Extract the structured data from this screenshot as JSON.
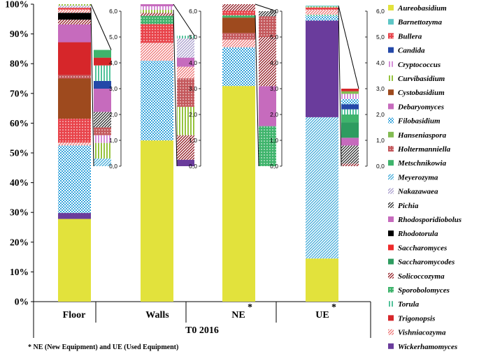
{
  "chart_data": {
    "type": "stacked-bar",
    "title": "",
    "xlabel": "T0 2016",
    "footnote": "* NE (New Equipment) and UE (Used Equipment)",
    "y_ticks": [
      "0%",
      "10%",
      "20%",
      "30%",
      "40%",
      "50%",
      "60%",
      "70%",
      "80%",
      "90%",
      "100%"
    ],
    "ylim": [
      0,
      100
    ],
    "inset_ticks": [
      "0,0",
      "1,0",
      "2,0",
      "3,0",
      "4,0",
      "5,0",
      "6,0"
    ],
    "inset_ylim": [
      0,
      6
    ],
    "species": [
      {
        "name": "Aureobasidium",
        "color": "#e2e23c",
        "pattern": "solid"
      },
      {
        "name": "Barnettozyma",
        "color": "#5ec6c6",
        "pattern": "solid"
      },
      {
        "name": "Bullera",
        "color": "#e8434a",
        "pattern": "dots"
      },
      {
        "name": "Candida",
        "color": "#2448a8",
        "pattern": "solid"
      },
      {
        "name": "Cryptococcus",
        "color": "#d58ed8",
        "pattern": "vlines"
      },
      {
        "name": "Curvibasidium",
        "color": "#96c33e",
        "pattern": "vlines"
      },
      {
        "name": "Cystobasidium",
        "color": "#9e4a1e",
        "pattern": "solid"
      },
      {
        "name": "Debaryomyces",
        "color": "#c66bbd",
        "pattern": "solid"
      },
      {
        "name": "Filobasidium",
        "color": "#35a4dc",
        "pattern": "check"
      },
      {
        "name": "Hanseniaspora",
        "color": "#82bb52",
        "pattern": "solid"
      },
      {
        "name": "Holtermanniella",
        "color": "#c4585c",
        "pattern": "dots"
      },
      {
        "name": "Metschnikowia",
        "color": "#3fb46c",
        "pattern": "solid"
      },
      {
        "name": "Meyerozyma",
        "color": "#3aa8d8",
        "pattern": "diag"
      },
      {
        "name": "Nakazawaea",
        "color": "#a69acc",
        "pattern": "diag"
      },
      {
        "name": "Pichia",
        "color": "#222222",
        "pattern": "diag"
      },
      {
        "name": "Rhodosporidiobolus",
        "color": "#c66bbd",
        "pattern": "solid"
      },
      {
        "name": "Rhodotorula",
        "color": "#000000",
        "pattern": "solid"
      },
      {
        "name": "Saccharomyces",
        "color": "#ee2a2a",
        "pattern": "solid"
      },
      {
        "name": "Saccharomycodes",
        "color": "#2e9c60",
        "pattern": "solid"
      },
      {
        "name": "Solicoccozyma",
        "color": "#8c0e16",
        "pattern": "diag"
      },
      {
        "name": "Sporobolomyces",
        "color": "#3fb46c",
        "pattern": "dots"
      },
      {
        "name": "Torula",
        "color": "#52c29a",
        "pattern": "vlines"
      },
      {
        "name": "Trigonopsis",
        "color": "#d6262a",
        "pattern": "solid"
      },
      {
        "name": "Vishniacozyma",
        "color": "#ee7070",
        "pattern": "diag"
      },
      {
        "name": "Wickerhamomyces",
        "color": "#6a3c9c",
        "pattern": "solid"
      }
    ],
    "groups": [
      {
        "name": "Floor",
        "main": [
          {
            "species": "Aureobasidium",
            "value": 27.8
          },
          {
            "species": "Wickerhamomyces",
            "value": 2.0
          },
          {
            "species": "Filobasidium",
            "value": 22.7
          },
          {
            "species": "Vishniacozyma",
            "value": 1.0
          },
          {
            "species": "Bullera",
            "value": 8.0
          },
          {
            "species": "Cystobasidium",
            "value": 13.5
          },
          {
            "species": "Holtermanniella",
            "value": 1.2
          },
          {
            "species": "Trigonopsis",
            "value": 11.0
          },
          {
            "species": "Debaryomyces",
            "value": 6.0
          },
          {
            "species": "Solicoccozyma",
            "value": 1.6
          },
          {
            "species": "Rhodotorula",
            "value": 2.3
          },
          {
            "species": "Vishniacozyma",
            "value": 1.0
          },
          {
            "species": "Bullera",
            "value": 0.7
          },
          {
            "species": "Nakazawaea",
            "value": 0.7
          },
          {
            "species": "Curvibasidium",
            "value": 0.5
          }
        ],
        "inset": [
          {
            "species": "Meyerozyma",
            "value": 0.3
          },
          {
            "species": "Curvibasidium",
            "value": 0.6
          },
          {
            "species": "Cryptococcus",
            "value": 0.3
          },
          {
            "species": "Holtermanniella",
            "value": 0.3
          },
          {
            "species": "Pichia",
            "value": 0.6
          },
          {
            "species": "Debaryomyces",
            "value": 0.9
          },
          {
            "species": "Candida",
            "value": 0.3
          },
          {
            "species": "Torula",
            "value": 0.6
          },
          {
            "species": "Trigonopsis",
            "value": 0.3
          },
          {
            "species": "Metschnikowia",
            "value": 0.3
          }
        ]
      },
      {
        "name": "Walls",
        "main": [
          {
            "species": "Aureobasidium",
            "value": 54.2
          },
          {
            "species": "Filobasidium",
            "value": 26.8
          },
          {
            "species": "Vishniacozyma",
            "value": 6.0
          },
          {
            "species": "Bullera",
            "value": 6.3
          },
          {
            "species": "Sporobolomyces",
            "value": 2.8
          },
          {
            "species": "Solicoccozyma",
            "value": 1.0
          },
          {
            "species": "Curvibasidium",
            "value": 1.0
          },
          {
            "species": "Cryptococcus",
            "value": 1.2
          },
          {
            "species": "Debaryomyces",
            "value": 0.7
          }
        ],
        "inset": [
          {
            "species": "Wickerhamomyces",
            "value": 0.25
          },
          {
            "species": "Solicoccozyma",
            "value": 0.95
          },
          {
            "species": "Curvibasidium",
            "value": 1.1
          },
          {
            "species": "Holtermanniella",
            "value": 1.1
          },
          {
            "species": "Vishniacozyma",
            "value": 0.45
          },
          {
            "species": "Debaryomyces",
            "value": 0.35
          },
          {
            "species": "Nakazawaea",
            "value": 0.75
          },
          {
            "species": "Torula",
            "value": 0.1
          }
        ]
      },
      {
        "name": "NE",
        "main": [
          {
            "species": "Aureobasidium",
            "value": 72.5
          },
          {
            "species": "Filobasidium",
            "value": 13.0
          },
          {
            "species": "Vishniacozyma",
            "value": 2.6
          },
          {
            "species": "Holtermanniella",
            "value": 2.2
          },
          {
            "species": "Cystobasidium",
            "value": 5.2
          },
          {
            "species": "Sporobolomyces",
            "value": 0.8
          },
          {
            "species": "Bullera",
            "value": 1.5
          },
          {
            "species": "Solicoccozyma",
            "value": 2.2
          }
        ],
        "inset": [
          {
            "species": "Sporobolomyces",
            "value": 1.55
          },
          {
            "species": "Debaryomyces",
            "value": 1.55
          },
          {
            "species": "Solicoccozyma",
            "value": 1.9
          },
          {
            "species": "Holtermanniella",
            "value": 0.8
          },
          {
            "species": "Pichia",
            "value": 0.2
          }
        ]
      },
      {
        "name": "UE",
        "main": [
          {
            "species": "Aureobasidium",
            "value": 14.5
          },
          {
            "species": "Meyerozyma",
            "value": 47.5
          },
          {
            "species": "Wickerhamomyces",
            "value": 32.5
          },
          {
            "species": "Filobasidium",
            "value": 1.5
          },
          {
            "species": "Torula",
            "value": 0.5
          },
          {
            "species": "Vishniacozyma",
            "value": 1.6
          },
          {
            "species": "Bullera",
            "value": 0.8
          },
          {
            "species": "Curvibasidium",
            "value": 0.3
          },
          {
            "species": "Barnettozyma",
            "value": 0.3
          }
        ],
        "inset": [
          {
            "species": "Solicoccozyma",
            "value": 0.1
          },
          {
            "species": "Pichia",
            "value": 0.7
          },
          {
            "species": "Debaryomyces",
            "value": 0.3
          },
          {
            "species": "Saccharomycodes",
            "value": 0.6
          },
          {
            "species": "Metschnikowia",
            "value": 0.3
          },
          {
            "species": "Torula",
            "value": 0.2
          },
          {
            "species": "Candida",
            "value": 0.2
          },
          {
            "species": "Filobasidium",
            "value": 0.2
          },
          {
            "species": "Cryptococcus",
            "value": 0.2
          },
          {
            "species": "Hanseniaspora",
            "value": 0.1
          },
          {
            "species": "Trigonopsis",
            "value": 0.1
          }
        ]
      }
    ]
  },
  "group_labels": {
    "floor": "Floor",
    "walls": "Walls",
    "ne": "NE",
    "ne_star": "*",
    "ue": "UE",
    "ue_star": "*"
  }
}
